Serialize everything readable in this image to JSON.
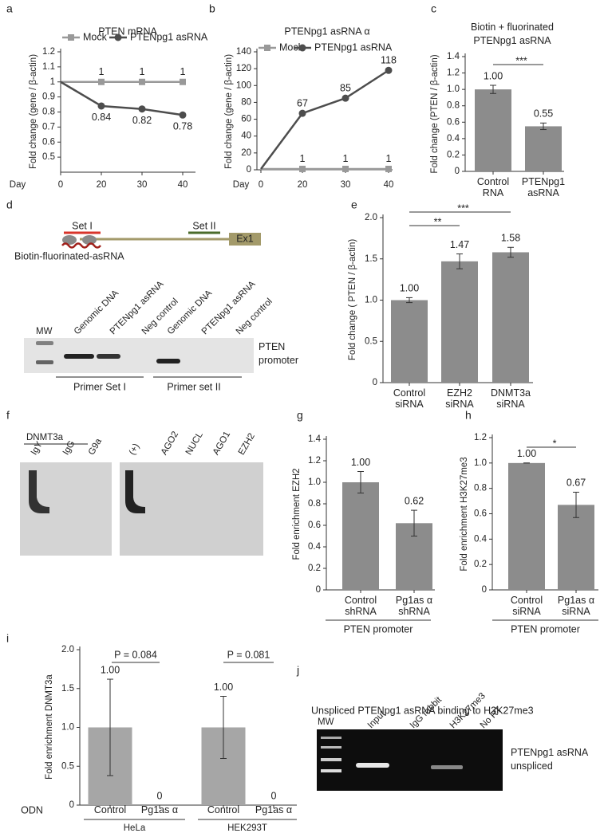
{
  "chart_data": [
    {
      "panel": "a",
      "type": "line",
      "title": "PTEN mRNA",
      "y_label": "Fold change (gene / β-actin)",
      "xlabel": "Day",
      "categories": [
        "0",
        "20",
        "30",
        "40"
      ],
      "series": [
        {
          "name": "Mock",
          "color": "#999999",
          "values": [
            1,
            1,
            1,
            1
          ],
          "value_labels": [
            null,
            "1",
            "1",
            "1"
          ]
        },
        {
          "name": "PTENpg1 asRNA",
          "color": "#4d4d4d",
          "values": [
            1,
            0.84,
            0.82,
            0.78
          ],
          "value_labels": [
            null,
            "0.84",
            "0.82",
            "0.78"
          ]
        }
      ],
      "ylim": [
        0.4,
        1.2
      ],
      "yticks": [
        0.5,
        0.6,
        0.7,
        0.8,
        0.9,
        1,
        1.1,
        1.2
      ]
    },
    {
      "panel": "b",
      "type": "line",
      "title": "PTENpg1 asRNA α",
      "y_label": "Fold change (gene / β-actin)",
      "xlabel": "Day",
      "categories": [
        "0",
        "20",
        "30",
        "40"
      ],
      "series": [
        {
          "name": "Mock",
          "color": "#999999",
          "values": [
            1,
            1,
            1,
            1
          ],
          "value_labels": [
            null,
            "1",
            "1",
            "1"
          ]
        },
        {
          "name": "PTENpg1 asRNA",
          "color": "#4d4d4d",
          "values": [
            1,
            67,
            85,
            118
          ],
          "value_labels": [
            null,
            "67",
            "85",
            "118"
          ]
        }
      ],
      "ylim": [
        0,
        140
      ],
      "yticks": [
        0,
        20,
        40,
        60,
        80,
        100,
        120,
        140
      ]
    },
    {
      "panel": "c",
      "type": "bar",
      "title": [
        "Biotin + fluorinated",
        "PTENpg1 asRNA"
      ],
      "y_label": "Fold change (PTEN / β-actin)",
      "categories": [
        [
          "Control",
          "RNA"
        ],
        [
          "PTENpg1",
          "asRNA"
        ]
      ],
      "values": [
        1.0,
        0.55
      ],
      "errors": [
        0.05,
        0.04
      ],
      "value_labels": [
        "1.00",
        "0.55"
      ],
      "color": "#8c8c8c",
      "annotations": [
        "***"
      ],
      "ylim": [
        0,
        1.4
      ],
      "yticks": [
        0,
        0.2,
        0.4,
        0.6,
        0.8,
        {
          "value": 1,
          "label": "1.0"
        },
        1.2,
        1.4
      ]
    },
    {
      "panel": "e",
      "type": "bar",
      "y_label": "Fold change ( PTEN / β-actin)",
      "categories": [
        [
          "Control",
          "siRNA"
        ],
        [
          "EZH2",
          "siRNA"
        ],
        [
          "DNMT3a",
          "siRNA"
        ]
      ],
      "values": [
        1.0,
        1.47,
        1.58
      ],
      "errors": [
        0.03,
        0.09,
        0.06
      ],
      "value_labels": [
        "1.00",
        "1.47",
        "1.58"
      ],
      "color": "#8c8c8c",
      "annotations": [
        "**",
        "***"
      ],
      "ylim": [
        0,
        2
      ],
      "yticks": [
        0,
        0.5,
        {
          "value": 1,
          "label": "1.0"
        },
        1.5,
        {
          "value": 2,
          "label": "2.0"
        }
      ]
    },
    {
      "panel": "g",
      "type": "bar",
      "y_label": "Fold enrichment EZH2",
      "xlabel": "PTEN promoter",
      "categories": [
        [
          "Control",
          "shRNA"
        ],
        [
          "Pg1as α",
          "shRNA"
        ]
      ],
      "values": [
        1.0,
        0.62
      ],
      "errors": [
        0.1,
        0.12
      ],
      "value_labels": [
        "1.00",
        "0.62"
      ],
      "color": "#8c8c8c",
      "ylim": [
        0,
        1.4
      ],
      "yticks": [
        0,
        0.2,
        0.4,
        0.6,
        0.8,
        {
          "value": 1,
          "label": "1.0"
        },
        1.2,
        1.4
      ]
    },
    {
      "panel": "h",
      "type": "bar",
      "y_label": "Fold enrichment H3K27me3",
      "xlabel": "PTEN promoter",
      "categories": [
        [
          "Control",
          "siRNA"
        ],
        [
          "Pg1as α",
          "siRNA"
        ]
      ],
      "values": [
        1.0,
        0.67
      ],
      "errors": [
        0,
        0.1
      ],
      "value_labels": [
        "1.00",
        "0.67"
      ],
      "color": "#8c8c8c",
      "annotations": [
        "*"
      ],
      "ylim": [
        0,
        1.2
      ],
      "yticks": [
        0,
        0.2,
        0.4,
        0.6,
        0.8,
        {
          "value": 1,
          "label": "1.0"
        },
        1.2
      ]
    },
    {
      "panel": "i",
      "type": "bar",
      "y_label": "Fold enrichment DNMT3a",
      "xlabel": "ODN",
      "categories": [
        [
          "Control"
        ],
        [
          "Pg1as α"
        ],
        [
          "Control"
        ],
        [
          "Pg1as α"
        ]
      ],
      "groups": [
        "HeLa",
        "HEK293T"
      ],
      "values": [
        1.0,
        0,
        1.0,
        0
      ],
      "errors": [
        0.62,
        0,
        0.4,
        0
      ],
      "value_labels": [
        "1.00",
        "0",
        "1.00",
        "0"
      ],
      "color": "#a6a6a6",
      "annotations": [
        "P = 0.084",
        "P = 0.081"
      ],
      "ylim": [
        0,
        2
      ],
      "yticks": [
        0,
        0.5,
        {
          "value": 1,
          "label": "1.0"
        },
        1.5,
        {
          "value": 2,
          "label": "2.0"
        }
      ]
    }
  ],
  "gels": {
    "d": {
      "panel": "d",
      "markers": [
        "Set I",
        "Set II",
        "Ex1"
      ],
      "probe": "Biotin-fluorinated-asRNA",
      "lanes": [
        "MW",
        "Genomic DNA",
        "PTENpg1 asRNA",
        "Neg control",
        "Genomic DNA",
        "PTENpg1 asRNA",
        "Neg control"
      ],
      "target": [
        "PTEN",
        "promoter"
      ],
      "groups": [
        "Primer Set I",
        "Primer set II"
      ]
    },
    "f": {
      "panel": "f",
      "group": "DNMT3a",
      "lanes": [
        "IgY",
        "IgG",
        "G9a",
        "(+)",
        "AGO2",
        "NUCL",
        "AGO1",
        "EZH2"
      ]
    },
    "j": {
      "panel": "j",
      "title": "Unspliced PTENpg1 asRNA binding to H3K27me3",
      "lanes": [
        "MW",
        "Input",
        "IgG rabbit",
        "H3K27me3",
        "No RT"
      ],
      "target": [
        "PTENpg1 asRNA",
        "unspliced"
      ]
    }
  }
}
